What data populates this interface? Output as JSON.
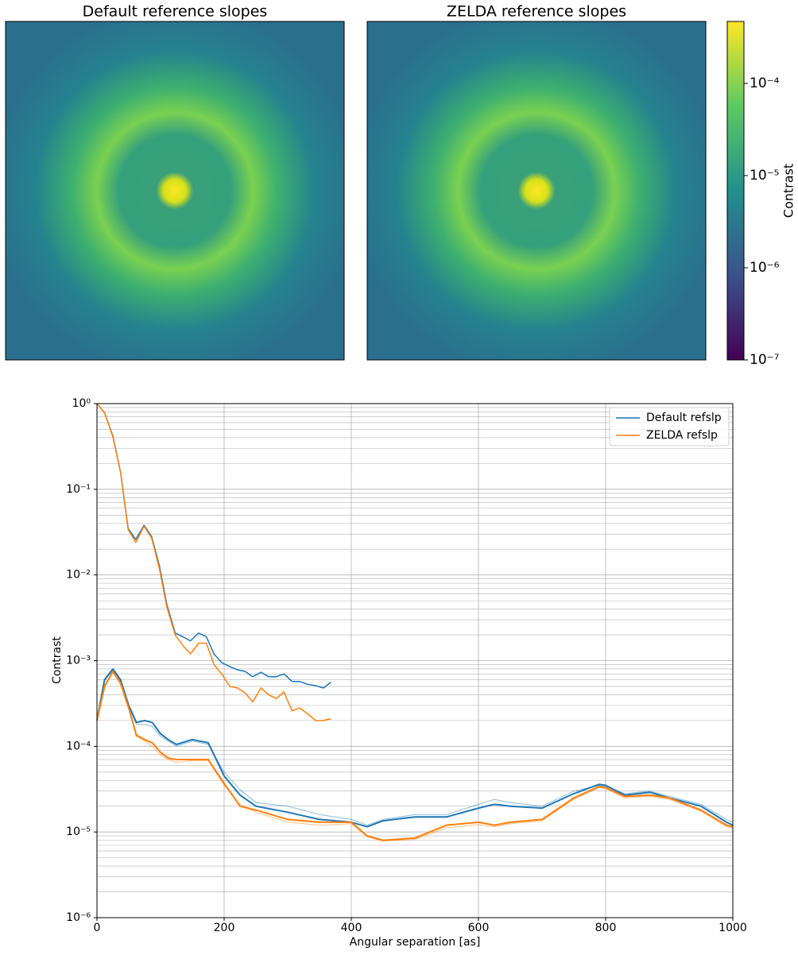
{
  "chart_data": [
    {
      "type": "image",
      "title": "Default reference slopes"
    },
    {
      "type": "image",
      "title": "ZELDA reference slopes"
    },
    {
      "type": "colorbar",
      "label": "Contrast",
      "log": true,
      "ylim": [
        1e-07,
        0.00047
      ],
      "yticks": [
        {
          "value": 1e-07,
          "label": "10⁻⁷"
        },
        {
          "value": 1e-06,
          "label": "10⁻⁶"
        },
        {
          "value": 1e-05,
          "label": "10⁻⁵"
        },
        {
          "value": 0.0001,
          "label": "10⁻⁴"
        }
      ]
    },
    {
      "type": "line",
      "xlabel": "Angular separation [as]",
      "ylabel": "Contrast",
      "log": true,
      "grid": true,
      "legend": "upper right",
      "xlim": [
        0,
        1000
      ],
      "xticks": [
        0,
        200,
        400,
        600,
        800,
        1000
      ],
      "ylim": [
        1e-06,
        1
      ],
      "yticks": [
        {
          "value": 1e-06,
          "label": "10⁻⁶"
        },
        {
          "value": 1e-05,
          "label": "10⁻⁵"
        },
        {
          "value": 0.0001,
          "label": "10⁻⁴"
        },
        {
          "value": 0.001,
          "label": "10⁻³"
        },
        {
          "value": 0.01,
          "label": "10⁻²"
        },
        {
          "value": 0.1,
          "label": "10⁻¹"
        },
        {
          "value": 1,
          "label": "10⁰"
        }
      ],
      "series": [
        {
          "name": "Default refslp",
          "color": "#1f77b4",
          "width": 1.5,
          "opacity": 1,
          "x": [
            0,
            12,
            25,
            37,
            49,
            61,
            74,
            86,
            98,
            110,
            123,
            135,
            147,
            160,
            172,
            184,
            196,
            209,
            221,
            233,
            245,
            258,
            270,
            282,
            294,
            307,
            319,
            331,
            344,
            356,
            368
          ],
          "values": [
            1,
            0.78,
            0.42,
            0.16,
            0.035,
            0.026,
            0.038,
            0.028,
            0.013,
            0.0045,
            0.0021,
            0.0019,
            0.0017,
            0.0021,
            0.0019,
            0.0012,
            0.00095,
            0.00085,
            0.00078,
            0.00075,
            0.00065,
            0.00073,
            0.00065,
            0.00065,
            0.0007,
            0.00057,
            0.00057,
            0.00053,
            0.00051,
            0.00048,
            0.00056
          ]
        },
        {
          "name": "ZELDA refslp",
          "color": "#ff7f0e",
          "width": 1.5,
          "opacity": 1,
          "x": [
            0,
            12,
            25,
            37,
            49,
            61,
            74,
            86,
            98,
            110,
            123,
            135,
            147,
            160,
            172,
            184,
            196,
            209,
            221,
            233,
            245,
            258,
            270,
            282,
            294,
            307,
            319,
            331,
            344,
            356,
            368
          ],
          "values": [
            1,
            0.78,
            0.41,
            0.16,
            0.034,
            0.024,
            0.037,
            0.027,
            0.012,
            0.0042,
            0.002,
            0.0015,
            0.0012,
            0.0016,
            0.0016,
            0.0009,
            0.0007,
            0.0005,
            0.00048,
            0.00042,
            0.00033,
            0.00048,
            0.0004,
            0.00036,
            0.00043,
            0.00026,
            0.00028,
            0.00024,
            0.0002,
            0.0002,
            0.00021
          ]
        },
        {
          "color": "#1f77b4",
          "width": 2,
          "opacity": 1,
          "x": [
            0,
            12,
            25,
            37,
            50,
            62,
            75,
            87,
            100,
            112,
            125,
            150,
            175,
            200,
            225,
            250,
            300,
            350,
            400,
            425,
            450,
            500,
            550,
            600,
            625,
            650,
            700,
            750,
            790,
            800,
            830,
            870,
            900,
            950,
            990,
            1000
          ],
          "values": [
            0.0002,
            0.0006,
            0.0008,
            0.0006,
            0.0003,
            0.00019,
            0.0002,
            0.00019,
            0.00014,
            0.00012,
            0.000105,
            0.00012,
            0.00011,
            4.5e-05,
            2.7e-05,
            2e-05,
            1.7e-05,
            1.4e-05,
            1.3e-05,
            1.15e-05,
            1.35e-05,
            1.5e-05,
            1.5e-05,
            1.9e-05,
            2.1e-05,
            2e-05,
            1.9e-05,
            2.8e-05,
            3.6e-05,
            3.5e-05,
            2.7e-05,
            2.9e-05,
            2.5e-05,
            2e-05,
            1.3e-05,
            1.2e-05
          ]
        },
        {
          "color": "#1f77b4",
          "width": 1,
          "opacity": 0.5,
          "x": [
            0,
            12,
            25,
            37,
            50,
            62,
            75,
            87,
            100,
            112,
            125,
            150,
            175,
            200,
            225,
            250,
            300,
            350,
            400,
            425,
            450,
            500,
            550,
            600,
            625,
            650,
            700,
            750,
            790,
            800,
            830,
            870,
            900,
            950,
            990,
            1000
          ],
          "values": [
            0.0002,
            0.00058,
            0.00078,
            0.00058,
            0.00029,
            0.00018,
            0.00018,
            0.00017,
            0.00013,
            0.000115,
            0.0001,
            0.000115,
            0.000105,
            5e-05,
            3.1e-05,
            2.2e-05,
            2e-05,
            1.6e-05,
            1.4e-05,
            1.2e-05,
            1.4e-05,
            1.6e-05,
            1.6e-05,
            2.1e-05,
            2.4e-05,
            2.2e-05,
            2e-05,
            3e-05,
            3.5e-05,
            3.4e-05,
            2.8e-05,
            3e-05,
            2.6e-05,
            2.1e-05,
            1.4e-05,
            1.3e-05
          ]
        },
        {
          "color": "#ff7f0e",
          "width": 2,
          "opacity": 1,
          "x": [
            0,
            12,
            25,
            37,
            50,
            62,
            75,
            87,
            100,
            112,
            125,
            150,
            175,
            200,
            225,
            250,
            300,
            350,
            400,
            425,
            450,
            500,
            550,
            600,
            625,
            650,
            700,
            750,
            790,
            800,
            830,
            870,
            900,
            950,
            990,
            1000
          ],
          "values": [
            0.0002,
            0.0005,
            0.00075,
            0.00055,
            0.00028,
            0.000135,
            0.00012,
            0.00011,
            8.5e-05,
            7.3e-05,
            7e-05,
            7e-05,
            7e-05,
            3.7e-05,
            2e-05,
            1.8e-05,
            1.4e-05,
            1.3e-05,
            1.3e-05,
            9e-06,
            8e-06,
            8.5e-06,
            1.2e-05,
            1.3e-05,
            1.2e-05,
            1.3e-05,
            1.4e-05,
            2.5e-05,
            3.4e-05,
            3.3e-05,
            2.6e-05,
            2.7e-05,
            2.5e-05,
            1.8e-05,
            1.2e-05,
            1.15e-05
          ]
        },
        {
          "color": "#ff7f0e",
          "width": 1,
          "opacity": 0.5,
          "x": [
            0,
            12,
            25,
            37,
            50,
            62,
            75,
            87,
            100,
            112,
            125,
            150,
            175,
            200,
            225,
            250,
            300,
            350,
            400,
            425,
            450,
            500,
            550,
            600,
            625,
            650,
            700,
            750,
            790,
            800,
            830,
            870,
            900,
            950,
            990,
            1000
          ],
          "values": [
            0.0002,
            0.00052,
            0.00072,
            0.00053,
            0.00027,
            0.00013,
            0.000115,
            0.0001,
            8e-05,
            7e-05,
            6.5e-05,
            6.8e-05,
            6.8e-05,
            3.5e-05,
            2.1e-05,
            1.7e-05,
            1.3e-05,
            1.2e-05,
            1.25e-05,
            8.8e-06,
            7.8e-06,
            8.2e-06,
            1.12e-05,
            1.22e-05,
            1.15e-05,
            1.25e-05,
            1.35e-05,
            2.4e-05,
            3.3e-05,
            3.2e-05,
            2.5e-05,
            2.6e-05,
            2.4e-05,
            1.75e-05,
            1.15e-05,
            1.1e-05
          ]
        }
      ]
    }
  ]
}
